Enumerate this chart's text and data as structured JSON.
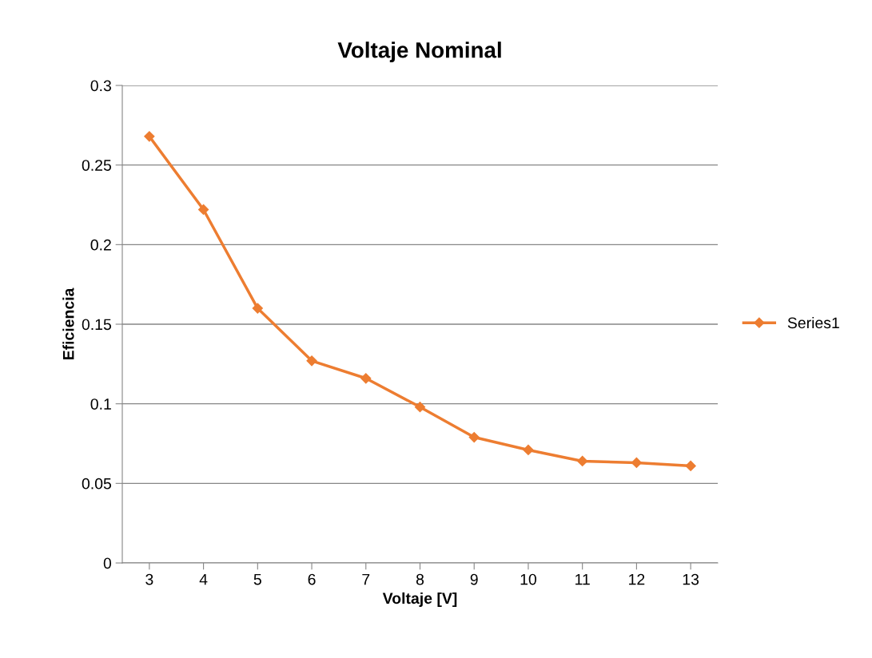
{
  "chart_data": {
    "type": "line",
    "title": "Voltaje Nominal",
    "xlabel": "Voltaje [V]",
    "ylabel": "Eficiencia",
    "categories": [
      "3",
      "4",
      "5",
      "6",
      "7",
      "8",
      "9",
      "10",
      "11",
      "12",
      "13"
    ],
    "series": [
      {
        "name": "Series1",
        "color": "#ed7d31",
        "values": [
          0.268,
          0.222,
          0.16,
          0.127,
          0.116,
          0.098,
          0.079,
          0.071,
          0.064,
          0.063,
          0.061
        ]
      }
    ],
    "ylim": [
      0,
      0.3
    ],
    "yticks": [
      0,
      0.05,
      0.1,
      0.15,
      0.2,
      0.25,
      0.3
    ],
    "grid": "y",
    "legend": "right",
    "marker": "diamond",
    "line_style": "solid"
  }
}
